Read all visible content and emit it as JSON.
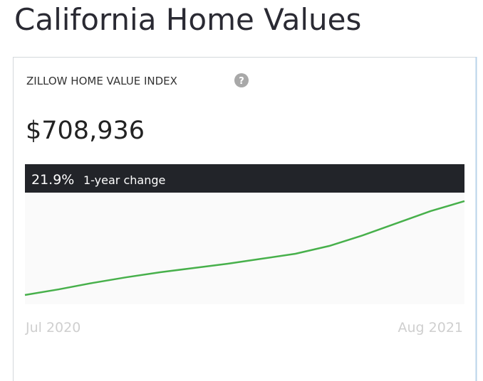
{
  "chart_data": {
    "type": "line",
    "title": "California Home Values",
    "subtitle": "ZILLOW HOME VALUE INDEX",
    "headline": "$708,936",
    "change": "21.9%",
    "change_label": "1-year change",
    "categories": [
      "Jul 2020",
      null,
      null,
      null,
      null,
      null,
      null,
      null,
      null,
      null,
      null,
      null,
      null,
      "Aug 2021"
    ],
    "series": [
      {
        "name": "Zillow Home Value Index",
        "color": "#47b04b",
        "values": [
          581500,
          589200,
          597900,
          605600,
          612400,
          618200,
          624000,
          630700,
          637500,
          648100,
          662600,
          679000,
          695400,
          708936
        ]
      }
    ],
    "ylim": [
      569000,
      719500
    ]
  }
}
